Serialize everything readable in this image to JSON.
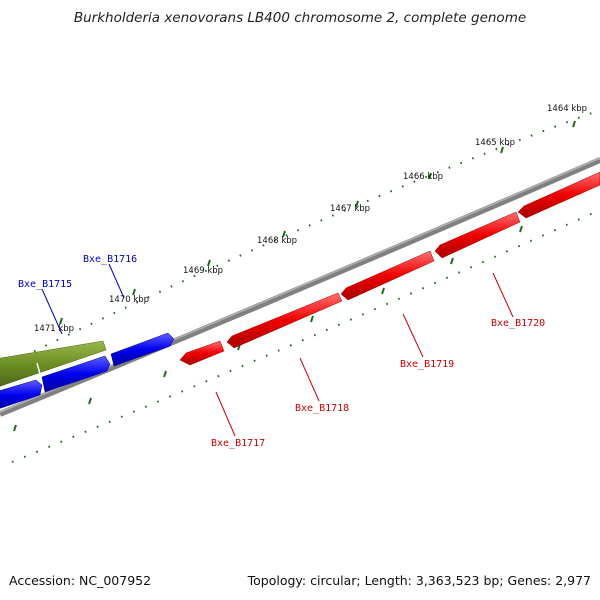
{
  "title": "Burkholderia xenovorans LB400 chromosome 2, complete genome",
  "footer": {
    "accession": "Accession: NC_007952",
    "summary": "Topology: circular; Length: 3,363,523 bp; Genes: 2,977"
  },
  "colors": {
    "backbone": "#808080",
    "tick": "#1e6e1e",
    "gene_forward": "#0000ee",
    "gene_reverse": "#ee0000",
    "gene_other": "#6b8e23",
    "label_forward": "#0000cc",
    "label_reverse": "#cc0000"
  },
  "ticks": [
    {
      "label": "1464 kbp"
    },
    {
      "label": "1465 kbp"
    },
    {
      "label": "1466 kbp"
    },
    {
      "label": "1467 kbp"
    },
    {
      "label": "1468 kbp"
    },
    {
      "label": "1469 kbp"
    },
    {
      "label": "1470 kbp"
    },
    {
      "label": "1471 kbp"
    }
  ],
  "genes": {
    "forward": [
      {
        "name": "Bxe_B1715"
      },
      {
        "name": "Bxe_B1716"
      }
    ],
    "reverse": [
      {
        "name": "Bxe_B1717"
      },
      {
        "name": "Bxe_B1718"
      },
      {
        "name": "Bxe_B1719"
      },
      {
        "name": "Bxe_B1720"
      }
    ]
  }
}
